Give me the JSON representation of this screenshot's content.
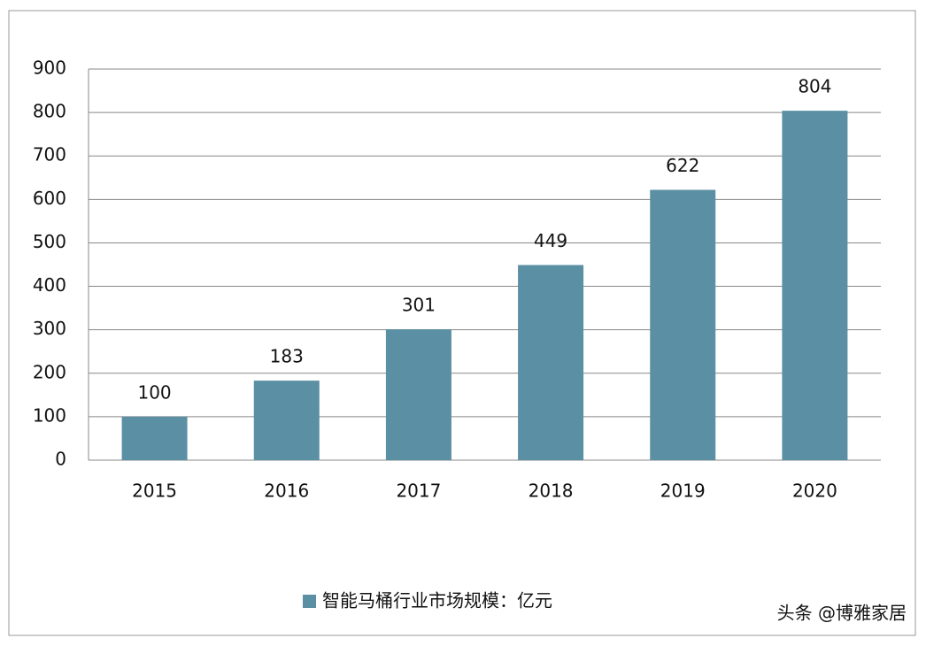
{
  "chart_data": {
    "type": "bar",
    "categories": [
      "2015",
      "2016",
      "2017",
      "2018",
      "2019",
      "2020"
    ],
    "series": [
      {
        "name": "智能马桶行业市场规模：亿元",
        "color": "#5b8fa3",
        "values": [
          100,
          183,
          301,
          449,
          622,
          804
        ]
      }
    ],
    "ylim": [
      0,
      900
    ],
    "yticks": [
      0,
      100,
      200,
      300,
      400,
      500,
      600,
      700,
      800,
      900
    ],
    "grid": true,
    "legend": "bottom",
    "watermark": "头条 @博雅家居"
  }
}
